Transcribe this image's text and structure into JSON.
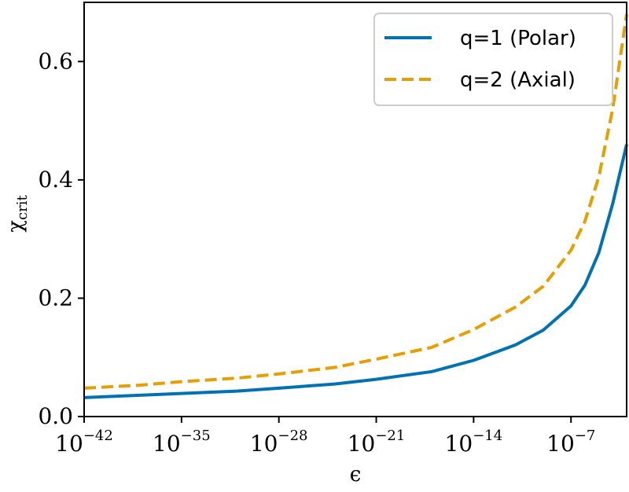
{
  "chart_data": {
    "type": "line",
    "xscale": "log",
    "x": [
      1e-42,
      1e-38,
      1e-35,
      1e-31,
      1e-28,
      1e-24,
      1e-21,
      1e-17,
      1e-14,
      1e-11,
      1e-09,
      1e-07,
      1e-06,
      1e-05,
      0.0001,
      0.001
    ],
    "series": [
      {
        "name": "q=1 (Polar)",
        "color": "#0072B2",
        "dash": "solid",
        "values": [
          0.032,
          0.036,
          0.039,
          0.043,
          0.048,
          0.055,
          0.063,
          0.076,
          0.095,
          0.121,
          0.146,
          0.187,
          0.222,
          0.277,
          0.36,
          0.46
        ]
      },
      {
        "name": "q=2 (Axial)",
        "color": "#E69F00",
        "dash": "dashed",
        "values": [
          0.048,
          0.053,
          0.059,
          0.065,
          0.072,
          0.083,
          0.097,
          0.117,
          0.147,
          0.185,
          0.22,
          0.281,
          0.33,
          0.405,
          0.52,
          0.68
        ]
      }
    ],
    "xlim_exp": [
      -42,
      -3
    ],
    "ylim": [
      0,
      0.7
    ],
    "xticks": [
      {
        "exp": -42,
        "base": "10",
        "sup": "−42"
      },
      {
        "exp": -35,
        "base": "10",
        "sup": "−35"
      },
      {
        "exp": -28,
        "base": "10",
        "sup": "−28"
      },
      {
        "exp": -21,
        "base": "10",
        "sup": "−21"
      },
      {
        "exp": -14,
        "base": "10",
        "sup": "−14"
      },
      {
        "exp": -7,
        "base": "10",
        "sup": "−7"
      }
    ],
    "yticks": [
      {
        "value": 0.0,
        "label": "0.0"
      },
      {
        "value": 0.2,
        "label": "0.2"
      },
      {
        "value": 0.4,
        "label": "0.4"
      },
      {
        "value": 0.6,
        "label": "0.6"
      }
    ],
    "xlabel": "ϵ",
    "ylabel": "χ",
    "ylabel_sub": "crit",
    "legend_position": "top-right",
    "grid": false
  }
}
